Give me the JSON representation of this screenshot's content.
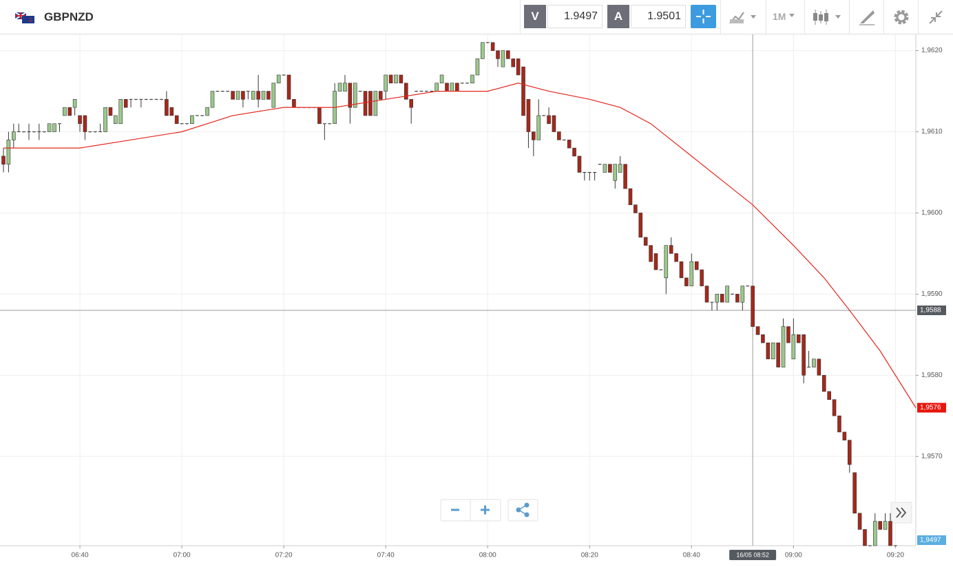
{
  "header": {
    "symbol": "GBPNZD",
    "sell": {
      "label": "V",
      "price": 1.9497
    },
    "buy": {
      "label": "A",
      "price": 1.9501
    },
    "timeframe": "1M"
  },
  "chart_data": {
    "type": "candlestick",
    "x": [
      "06:25",
      "06:26",
      "06:27",
      "06:28",
      "06:29",
      "06:30",
      "06:31",
      "06:32",
      "06:33",
      "06:34",
      "06:35",
      "06:36",
      "06:37",
      "06:38",
      "06:39",
      "06:40",
      "06:41",
      "06:42",
      "06:43",
      "06:44",
      "06:45",
      "06:46",
      "06:47",
      "06:48",
      "06:49",
      "06:50",
      "06:51",
      "06:52",
      "06:53",
      "06:54",
      "06:55",
      "06:56",
      "06:57",
      "06:58",
      "06:59",
      "07:00",
      "07:01",
      "07:02",
      "07:03",
      "07:04",
      "07:05",
      "07:06",
      "07:07",
      "07:08",
      "07:09",
      "07:10",
      "07:11",
      "07:12",
      "07:13",
      "07:14",
      "07:15",
      "07:16",
      "07:17",
      "07:18",
      "07:19",
      "07:20",
      "07:21",
      "07:22",
      "07:23",
      "07:24",
      "07:25",
      "07:26",
      "07:27",
      "07:28",
      "07:29",
      "07:30",
      "07:31",
      "07:32",
      "07:33",
      "07:34",
      "07:35",
      "07:36",
      "07:37",
      "07:38",
      "07:39",
      "07:40",
      "07:41",
      "07:42",
      "07:43",
      "07:44",
      "07:45",
      "07:46",
      "07:47",
      "07:48",
      "07:49",
      "07:50",
      "07:51",
      "07:52",
      "07:53",
      "07:54",
      "07:55",
      "07:56",
      "07:57",
      "07:58",
      "07:59",
      "08:00",
      "08:01",
      "08:02",
      "08:03",
      "08:04",
      "08:05",
      "08:06",
      "08:07",
      "08:08",
      "08:09",
      "08:10",
      "08:11",
      "08:12",
      "08:13",
      "08:14",
      "08:15",
      "08:16",
      "08:17",
      "08:18",
      "08:19",
      "08:20",
      "08:21",
      "08:22",
      "08:23",
      "08:24",
      "08:25",
      "08:26",
      "08:27",
      "08:28",
      "08:29",
      "08:30",
      "08:31",
      "08:32",
      "08:33",
      "08:34",
      "08:35",
      "08:36",
      "08:37",
      "08:38",
      "08:39",
      "08:40",
      "08:41",
      "08:42",
      "08:43",
      "08:44",
      "08:45",
      "08:46",
      "08:47",
      "08:48",
      "08:49",
      "08:50",
      "08:51",
      "08:52",
      "08:53",
      "08:54",
      "08:55",
      "08:56",
      "08:57",
      "08:58",
      "08:59",
      "09:00",
      "09:01",
      "09:02",
      "09:03",
      "09:04",
      "09:05",
      "09:06",
      "09:07",
      "09:08",
      "09:09",
      "09:10",
      "09:11",
      "09:12",
      "09:13",
      "09:14",
      "09:15",
      "09:16",
      "09:17",
      "09:18",
      "09:19",
      "09:20"
    ],
    "open": [
      1.9607,
      1.9606,
      1.9609,
      1.961,
      1.961,
      1.961,
      1.961,
      1.961,
      1.961,
      1.961,
      1.961,
      1.9611,
      1.9612,
      1.9613,
      1.9613,
      1.9612,
      1.9612,
      1.961,
      1.961,
      1.961,
      1.961,
      1.9613,
      1.9611,
      1.9611,
      1.9614,
      1.9614,
      1.9614,
      1.9614,
      1.9614,
      1.9614,
      1.9614,
      1.9614,
      1.9614,
      1.9613,
      1.9612,
      1.9611,
      1.9611,
      1.9611,
      1.9612,
      1.9612,
      1.9612,
      1.9613,
      1.9615,
      1.9615,
      1.9615,
      1.9615,
      1.9614,
      1.9615,
      1.9615,
      1.9614,
      1.9615,
      1.9614,
      1.9615,
      1.9613,
      1.9616,
      1.9617,
      1.9617,
      1.9614,
      1.9613,
      1.9613,
      1.9613,
      1.9613,
      1.9613,
      1.9611,
      1.9611,
      1.9611,
      1.9615,
      1.9615,
      1.9616,
      1.9613,
      1.9615,
      1.9615,
      1.9615,
      1.9612,
      1.9615,
      1.9615,
      1.9617,
      1.9616,
      1.9617,
      1.9616,
      1.9614,
      1.9615,
      1.9615,
      1.9615,
      1.9615,
      1.9615,
      1.9616,
      1.9616,
      1.9615,
      1.9616,
      1.9616,
      1.9616,
      1.9616,
      1.9617,
      1.9619,
      1.9621,
      1.9621,
      1.962,
      1.9618,
      1.962,
      1.9619,
      1.9619,
      1.9618,
      1.9614,
      1.961,
      1.9609,
      1.9612,
      1.9612,
      1.9612,
      1.961,
      1.9609,
      1.9609,
      1.9608,
      1.9607,
      1.9605,
      1.9605,
      1.9605,
      1.9606,
      1.9605,
      1.9606,
      1.9604,
      1.9605,
      1.9606,
      1.9603,
      1.9601,
      1.96,
      1.9597,
      1.9596,
      1.9595,
      1.9593,
      1.9592,
      1.9596,
      1.9595,
      1.9594,
      1.9592,
      1.9591,
      1.9594,
      1.9593,
      1.9591,
      1.9589,
      1.9589,
      1.959,
      1.9589,
      1.959,
      1.959,
      1.9589,
      1.9591,
      1.9591,
      1.9586,
      1.9585,
      1.9584,
      1.9582,
      1.9584,
      1.9581,
      1.9586,
      1.9582,
      1.9585,
      1.9585,
      1.9581,
      1.9581,
      1.9582,
      1.958,
      1.9578,
      1.9577,
      1.9575,
      1.9573,
      1.9572,
      1.9568,
      1.9563,
      1.9561,
      1.9559,
      1.9559,
      1.9562,
      1.9561,
      1.9562,
      1.9559
    ],
    "high": [
      1.9608,
      1.961,
      1.9611,
      1.9611,
      1.961,
      1.9611,
      1.961,
      1.9611,
      1.961,
      1.9611,
      1.9611,
      1.9611,
      1.9613,
      1.9613,
      1.9614,
      1.9612,
      1.9612,
      1.961,
      1.961,
      1.9611,
      1.9613,
      1.9613,
      1.9612,
      1.9614,
      1.9614,
      1.9614,
      1.9614,
      1.9614,
      1.9614,
      1.9614,
      1.9614,
      1.9614,
      1.9615,
      1.9613,
      1.9612,
      1.9611,
      1.9611,
      1.9612,
      1.9612,
      1.9612,
      1.9613,
      1.9615,
      1.9615,
      1.9615,
      1.9615,
      1.9615,
      1.9615,
      1.9615,
      1.9615,
      1.9615,
      1.9617,
      1.9615,
      1.9615,
      1.9616,
      1.9617,
      1.9617,
      1.9617,
      1.9614,
      1.9613,
      1.9613,
      1.9613,
      1.9613,
      1.9613,
      1.9611,
      1.9611,
      1.9616,
      1.9616,
      1.9617,
      1.9616,
      1.9616,
      1.9615,
      1.9615,
      1.9615,
      1.9615,
      1.9615,
      1.9617,
      1.9617,
      1.9617,
      1.9617,
      1.9616,
      1.9614,
      1.9615,
      1.9615,
      1.9615,
      1.9615,
      1.9616,
      1.9617,
      1.9616,
      1.9616,
      1.9616,
      1.9616,
      1.9616,
      1.9617,
      1.9619,
      1.9621,
      1.9621,
      1.9621,
      1.962,
      1.962,
      1.962,
      1.9619,
      1.9619,
      1.9618,
      1.9614,
      1.961,
      1.9614,
      1.9612,
      1.9613,
      1.9612,
      1.961,
      1.9609,
      1.9609,
      1.9608,
      1.9607,
      1.9605,
      1.9605,
      1.9605,
      1.9606,
      1.9606,
      1.9606,
      1.9606,
      1.9607,
      1.9606,
      1.9603,
      1.9601,
      1.96,
      1.9597,
      1.9596,
      1.9595,
      1.9593,
      1.9596,
      1.9597,
      1.9595,
      1.9594,
      1.9592,
      1.9595,
      1.9594,
      1.9593,
      1.9591,
      1.9589,
      1.959,
      1.959,
      1.9591,
      1.959,
      1.959,
      1.9591,
      1.9591,
      1.9591,
      1.9586,
      1.9585,
      1.9584,
      1.9584,
      1.9584,
      1.9587,
      1.9586,
      1.9587,
      1.9585,
      1.9585,
      1.9583,
      1.9582,
      1.9582,
      1.958,
      1.9578,
      1.9577,
      1.9575,
      1.9573,
      1.9572,
      1.9568,
      1.9563,
      1.9561,
      1.9559,
      1.9563,
      1.9562,
      1.9563,
      1.9563,
      1.9559
    ],
    "low": [
      1.9605,
      1.9605,
      1.9608,
      1.961,
      1.961,
      1.9609,
      1.961,
      1.9609,
      1.961,
      1.961,
      1.961,
      1.961,
      1.9612,
      1.9612,
      1.9612,
      1.961,
      1.9609,
      1.961,
      1.961,
      1.961,
      1.961,
      1.9612,
      1.9611,
      1.9611,
      1.9613,
      1.9613,
      1.9614,
      1.9613,
      1.9614,
      1.9614,
      1.9614,
      1.9614,
      1.9612,
      1.9612,
      1.9611,
      1.9611,
      1.9611,
      1.9611,
      1.9612,
      1.9612,
      1.9612,
      1.9613,
      1.9615,
      1.9615,
      1.9615,
      1.9614,
      1.9614,
      1.9613,
      1.9614,
      1.9614,
      1.9613,
      1.9614,
      1.9614,
      1.9613,
      1.9616,
      1.9617,
      1.9614,
      1.9613,
      1.9613,
      1.9613,
      1.9613,
      1.9613,
      1.9611,
      1.9609,
      1.9611,
      1.9611,
      1.9615,
      1.9615,
      1.9611,
      1.9613,
      1.9615,
      1.9612,
      1.9612,
      1.9612,
      1.9614,
      1.9614,
      1.9616,
      1.9616,
      1.9616,
      1.9614,
      1.9611,
      1.9615,
      1.9615,
      1.9615,
      1.9615,
      1.9615,
      1.9616,
      1.9615,
      1.9615,
      1.9615,
      1.9616,
      1.9616,
      1.9616,
      1.9617,
      1.9619,
      1.9621,
      1.962,
      1.9618,
      1.9618,
      1.9619,
      1.9618,
      1.9617,
      1.9612,
      1.9608,
      1.9607,
      1.9609,
      1.9612,
      1.9611,
      1.961,
      1.9609,
      1.9609,
      1.9608,
      1.9607,
      1.9605,
      1.9604,
      1.9604,
      1.9604,
      1.9606,
      1.9605,
      1.9605,
      1.9603,
      1.9605,
      1.9603,
      1.9601,
      1.96,
      1.9597,
      1.9596,
      1.9594,
      1.9593,
      1.9593,
      1.959,
      1.9595,
      1.9594,
      1.9592,
      1.9591,
      1.9591,
      1.9593,
      1.9591,
      1.9589,
      1.9588,
      1.9588,
      1.9589,
      1.9589,
      1.959,
      1.9589,
      1.9588,
      1.9591,
      1.9586,
      1.9585,
      1.9584,
      1.9582,
      1.9582,
      1.9581,
      1.9581,
      1.9584,
      1.9582,
      1.9584,
      1.9579,
      1.9581,
      1.9581,
      1.958,
      1.9578,
      1.9577,
      1.9575,
      1.9573,
      1.9572,
      1.9568,
      1.9563,
      1.9561,
      1.9559,
      1.9559,
      1.9559,
      1.9561,
      1.9561,
      1.9559,
      1.9559
    ],
    "close": [
      1.9606,
      1.9609,
      1.961,
      1.961,
      1.961,
      1.961,
      1.961,
      1.961,
      1.961,
      1.9611,
      1.9611,
      1.9611,
      1.9613,
      1.9612,
      1.9614,
      1.9611,
      1.961,
      1.961,
      1.961,
      1.961,
      1.9613,
      1.9612,
      1.9612,
      1.9614,
      1.9613,
      1.9614,
      1.9614,
      1.9614,
      1.9614,
      1.9614,
      1.9614,
      1.9614,
      1.9612,
      1.9612,
      1.9611,
      1.9611,
      1.9611,
      1.9612,
      1.9612,
      1.9612,
      1.9613,
      1.9615,
      1.9615,
      1.9615,
      1.9615,
      1.9614,
      1.9615,
      1.9614,
      1.9615,
      1.9615,
      1.9614,
      1.9615,
      1.9614,
      1.9616,
      1.9617,
      1.9617,
      1.9614,
      1.9613,
      1.9613,
      1.9613,
      1.9613,
      1.9613,
      1.9611,
      1.9611,
      1.9611,
      1.9615,
      1.9616,
      1.9616,
      1.9613,
      1.9616,
      1.9615,
      1.9612,
      1.9612,
      1.9615,
      1.9614,
      1.9617,
      1.9616,
      1.9617,
      1.9616,
      1.9614,
      1.9613,
      1.9615,
      1.9615,
      1.9615,
      1.9615,
      1.9616,
      1.9617,
      1.9615,
      1.9616,
      1.9615,
      1.9616,
      1.9616,
      1.9617,
      1.9619,
      1.9621,
      1.9621,
      1.962,
      1.9619,
      1.962,
      1.9619,
      1.9618,
      1.9617,
      1.9612,
      1.961,
      1.9609,
      1.9612,
      1.9612,
      1.9611,
      1.961,
      1.9609,
      1.9609,
      1.9608,
      1.9607,
      1.9605,
      1.9605,
      1.9605,
      1.9605,
      1.9606,
      1.9606,
      1.9605,
      1.9606,
      1.9606,
      1.9603,
      1.9601,
      1.96,
      1.9597,
      1.9596,
      1.9594,
      1.9593,
      1.9593,
      1.9596,
      1.9595,
      1.9594,
      1.9592,
      1.9591,
      1.9594,
      1.9593,
      1.9591,
      1.9589,
      1.9589,
      1.959,
      1.9589,
      1.9591,
      1.959,
      1.9589,
      1.9591,
      1.9591,
      1.9586,
      1.9585,
      1.9584,
      1.9582,
      1.9584,
      1.9581,
      1.9586,
      1.9584,
      1.9585,
      1.9584,
      1.958,
      1.9581,
      1.9582,
      1.958,
      1.9578,
      1.9577,
      1.9575,
      1.9573,
      1.9572,
      1.9569,
      1.9563,
      1.9561,
      1.9559,
      1.9559,
      1.9562,
      1.9561,
      1.9562,
      1.9559,
      1.9559
    ],
    "up_color": "#9cc98d",
    "down_color": "#a5281b",
    "moving_average": {
      "color": "#e3261c",
      "x": [
        "06:25",
        "06:40",
        "06:50",
        "07:00",
        "07:10",
        "07:20",
        "07:30",
        "07:40",
        "07:50",
        "08:00",
        "08:06",
        "08:12",
        "08:20",
        "08:26",
        "08:32",
        "08:40",
        "08:46",
        "08:52",
        "09:00",
        "09:06",
        "09:11",
        "09:17",
        "09:24"
      ],
      "values": [
        1.9608,
        1.9608,
        1.9609,
        1.961,
        1.9612,
        1.9613,
        1.9613,
        1.9614,
        1.9615,
        1.9615,
        1.9616,
        1.9615,
        1.9614,
        1.9613,
        1.9611,
        1.9607,
        1.9604,
        1.9601,
        1.9596,
        1.9592,
        1.9588,
        1.9583,
        1.9576
      ],
      "last_label": {
        "value": 1.9576,
        "label": "1,9576"
      }
    },
    "crosshair": {
      "price": {
        "value": 1.9588,
        "label": "1,9588"
      },
      "time": {
        "value": "08:52",
        "label": "16/05 08:52"
      }
    },
    "last_price": {
      "value": 1.9497,
      "label": "1,9497",
      "color": "#5aaee0"
    },
    "xlim": [
      "06:25",
      "09:24"
    ],
    "xticks": [
      "06:40",
      "07:00",
      "07:20",
      "07:40",
      "08:00",
      "08:20",
      "08:40",
      "09:00",
      "09:20"
    ],
    "ylim": [
      1.9559,
      1.9622
    ],
    "yticks": [
      {
        "value": 1.957,
        "label": "1,9570"
      },
      {
        "value": 1.958,
        "label": "1,9580"
      },
      {
        "value": 1.959,
        "label": "1,9590"
      },
      {
        "value": 1.96,
        "label": "1,9600"
      },
      {
        "value": 1.961,
        "label": "1,9610"
      },
      {
        "value": 1.962,
        "label": "1,9620"
      }
    ],
    "grid": true
  }
}
